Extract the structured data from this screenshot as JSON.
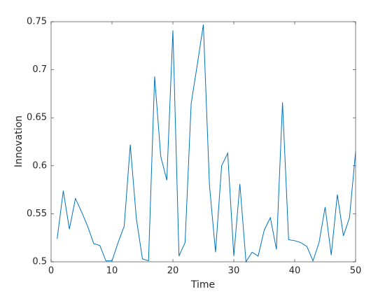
{
  "chart_data": {
    "type": "line",
    "xlabel": "Time",
    "ylabel": "Innovation",
    "x": [
      1,
      2,
      3,
      4,
      5,
      6,
      7,
      8,
      9,
      10,
      11,
      12,
      13,
      14,
      15,
      16,
      17,
      18,
      19,
      20,
      21,
      22,
      23,
      24,
      25,
      26,
      27,
      28,
      29,
      30,
      31,
      32,
      33,
      34,
      35,
      36,
      37,
      38,
      39,
      40,
      41,
      42,
      43,
      44,
      45,
      46,
      47,
      48,
      49,
      50
    ],
    "series": [
      {
        "color": "#0072bd",
        "values": [
          0.524,
          0.574,
          0.534,
          0.566,
          0.552,
          0.537,
          0.519,
          0.517,
          0.501,
          0.501,
          0.52,
          0.537,
          0.622,
          0.545,
          0.503,
          0.501,
          0.693,
          0.61,
          0.585,
          0.741,
          0.506,
          0.52,
          0.665,
          0.705,
          0.747,
          0.58,
          0.51,
          0.6,
          0.613,
          0.506,
          0.581,
          0.5,
          0.51,
          0.506,
          0.533,
          0.546,
          0.513,
          0.666,
          0.523,
          0.522,
          0.52,
          0.516,
          0.501,
          0.52,
          0.557,
          0.507,
          0.57,
          0.527,
          0.546,
          0.615
        ]
      }
    ],
    "xlim": [
      0,
      50
    ],
    "xticks": [
      0,
      10,
      20,
      30,
      40,
      50
    ],
    "ylim": [
      0.5,
      0.75
    ],
    "yticks": [
      0.5,
      0.55,
      0.6,
      0.65,
      0.7,
      0.75
    ],
    "grid": false
  }
}
